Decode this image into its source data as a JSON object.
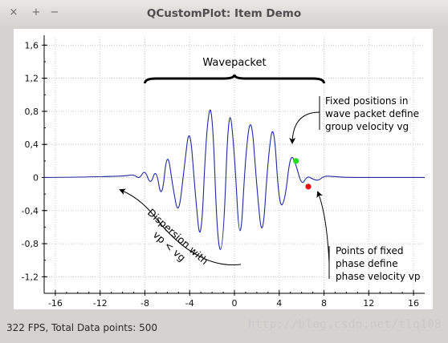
{
  "window": {
    "title": "QCustomPlot: Item Demo",
    "close_glyph": "×",
    "maximize_glyph": "+",
    "minimize_glyph": "−"
  },
  "status_bar": {
    "text": "322 FPS, Total Data points: 500",
    "watermark": "http://blog.csdn.net/tlq108"
  },
  "chart_data": {
    "type": "line",
    "title": "",
    "xlabel": "",
    "ylabel": "",
    "xlim": [
      -17,
      17
    ],
    "ylim": [
      -1.4,
      1.7
    ],
    "xticks": [
      -16,
      -12,
      -8,
      -4,
      0,
      4,
      8,
      12,
      16
    ],
    "yticks": [
      -1.2,
      -0.8,
      -0.4,
      0,
      0.4,
      0.8,
      1.2,
      1.6
    ],
    "xtick_labels": [
      "-16",
      "-12",
      "-8",
      "-4",
      "0",
      "4",
      "8",
      "12",
      "16"
    ],
    "ytick_labels": [
      "-1,2",
      "-0,8",
      "-0,4",
      "0",
      "0,4",
      "0,8",
      "1,2",
      "1,6"
    ],
    "grid": true,
    "series": [
      {
        "color": "#1f2a9e",
        "x": [
          -17,
          -10,
          -9,
          -8.5,
          -8,
          -7.5,
          -7,
          -6.5,
          -6,
          -5.5,
          -5,
          -4.5,
          -4,
          -3.5,
          -3,
          -2.5,
          -2,
          -1.5,
          -1,
          -0.5,
          0,
          0.5,
          1,
          1.5,
          2,
          2.5,
          3,
          3.5,
          4,
          4.5,
          5,
          5.5,
          6,
          6.5,
          7,
          7.5,
          8,
          9,
          10,
          17
        ],
        "y": [
          0,
          0.01,
          0.04,
          -0.02,
          0.1,
          -0.1,
          0.12,
          -0.3,
          0.36,
          -0.12,
          -0.48,
          0.1,
          0.68,
          -0.2,
          -0.9,
          0.62,
          0.96,
          -0.88,
          -0.86,
          0.96,
          0.32,
          -0.96,
          0.3,
          0.8,
          -0.12,
          -0.82,
          0.24,
          0.72,
          -0.36,
          -0.3,
          0.3,
          0.16,
          -0.1,
          0.02,
          -0.02,
          -0.04,
          0.02,
          0.01,
          0,
          0
        ]
      }
    ],
    "points": [
      {
        "x": 5.5,
        "y": 0.2,
        "color": "#22dd22"
      },
      {
        "x": 6.6,
        "y": -0.11,
        "color": "#e81010"
      }
    ],
    "annotations": {
      "bracket_label": "Wavepacket",
      "group_velocity": [
        "Fixed positions in",
        "wave packet define",
        "group velocity vg"
      ],
      "phase_velocity": [
        "Points of fixed",
        "phase define",
        "phase velocity vp"
      ],
      "dispersion": [
        "Dispersion with",
        "vp < vg"
      ]
    }
  }
}
